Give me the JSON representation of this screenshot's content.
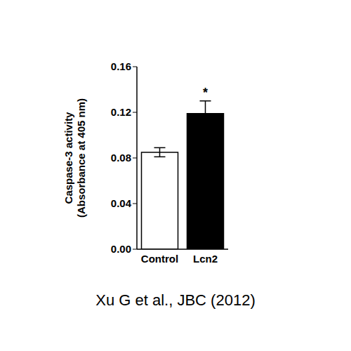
{
  "chart_data": {
    "type": "bar",
    "categories": [
      "Control",
      "Lcn2"
    ],
    "values": [
      0.085,
      0.119
    ],
    "errors": [
      0.004,
      0.011
    ],
    "colors": [
      "#ffffff",
      "#000000"
    ],
    "y_label": "Caspase-3 activity\n(Absorbance at 405 nm)",
    "ylim": [
      0,
      0.16
    ],
    "yticks": [
      {
        "value": 0,
        "label": "0.00"
      },
      0.04,
      0.08,
      0.12,
      0.16
    ],
    "grid": false,
    "annotations": [
      {
        "text": "*",
        "x": "Lcn2"
      }
    ],
    "caption": "Xu G et al., JBC (2012)"
  }
}
